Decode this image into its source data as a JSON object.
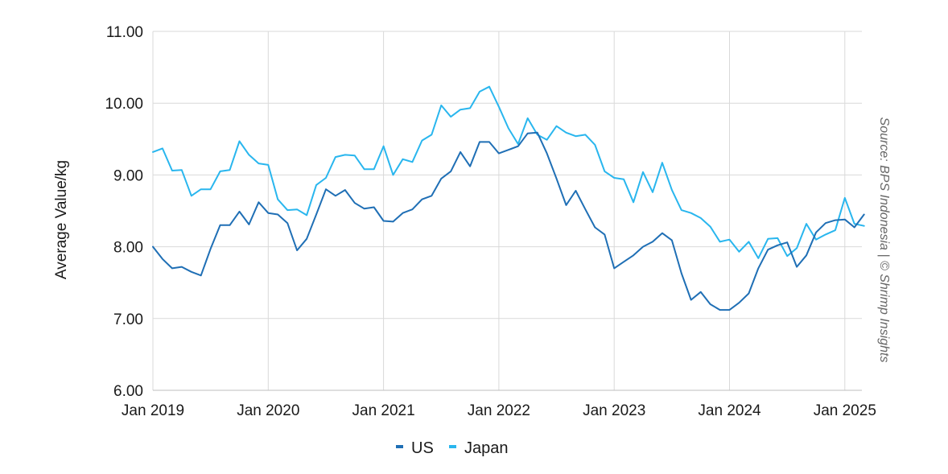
{
  "chart_data": {
    "type": "line",
    "title": "",
    "xlabel": "",
    "ylabel": "Average Value/kg",
    "ylim": [
      6,
      11
    ],
    "yticks": [
      "6.00",
      "7.00",
      "8.00",
      "9.00",
      "10.00",
      "11.00"
    ],
    "xticks": [
      "Jan 2019",
      "Jan 2020",
      "Jan 2021",
      "Jan 2022",
      "Jan 2023",
      "Jan 2024",
      "Jan 2025"
    ],
    "x_start": "2019-01",
    "x_end": "2025-02",
    "grid": true,
    "legend_position": "bottom",
    "source": "Source: BPS Indonesia | © Shrimp Insights",
    "series": [
      {
        "name": "US",
        "color": "#1f6fb5",
        "values": [
          8.0,
          7.83,
          7.7,
          7.72,
          7.65,
          7.6,
          7.97,
          8.3,
          8.3,
          8.49,
          8.31,
          8.62,
          8.47,
          8.45,
          8.33,
          7.95,
          8.11,
          8.45,
          8.8,
          8.71,
          8.79,
          8.61,
          8.53,
          8.55,
          8.36,
          8.35,
          8.47,
          8.52,
          8.66,
          8.71,
          8.95,
          9.05,
          9.32,
          9.12,
          9.46,
          9.46,
          9.3,
          9.35,
          9.4,
          9.58,
          9.59,
          9.3,
          8.95,
          8.58,
          8.78,
          8.52,
          8.27,
          8.17,
          7.7,
          7.79,
          7.88,
          8.0,
          8.07,
          8.19,
          8.09,
          7.63,
          7.26,
          7.37,
          7.2,
          7.12,
          7.12,
          7.22,
          7.35,
          7.7,
          7.96,
          8.02,
          8.06,
          7.72,
          7.88,
          8.2,
          8.33,
          8.37,
          8.38,
          8.27,
          8.45
        ]
      },
      {
        "name": "Japan",
        "color": "#29b6ee",
        "values": [
          9.32,
          9.37,
          9.06,
          9.07,
          8.71,
          8.8,
          8.8,
          9.05,
          9.07,
          9.47,
          9.28,
          9.16,
          9.14,
          8.66,
          8.51,
          8.52,
          8.44,
          8.86,
          8.96,
          9.25,
          9.28,
          9.27,
          9.08,
          9.08,
          9.4,
          9.0,
          9.22,
          9.18,
          9.48,
          9.56,
          9.97,
          9.81,
          9.91,
          9.93,
          10.16,
          10.23,
          9.95,
          9.65,
          9.43,
          9.79,
          9.56,
          9.49,
          9.68,
          9.59,
          9.54,
          9.56,
          9.42,
          9.05,
          8.96,
          8.94,
          8.62,
          9.04,
          8.76,
          9.17,
          8.79,
          8.51,
          8.47,
          8.4,
          8.28,
          8.07,
          8.1,
          7.93,
          8.07,
          7.84,
          8.11,
          8.12,
          7.87,
          7.98,
          8.32,
          8.1,
          8.17,
          8.23,
          8.68,
          8.32,
          8.29
        ]
      }
    ]
  }
}
